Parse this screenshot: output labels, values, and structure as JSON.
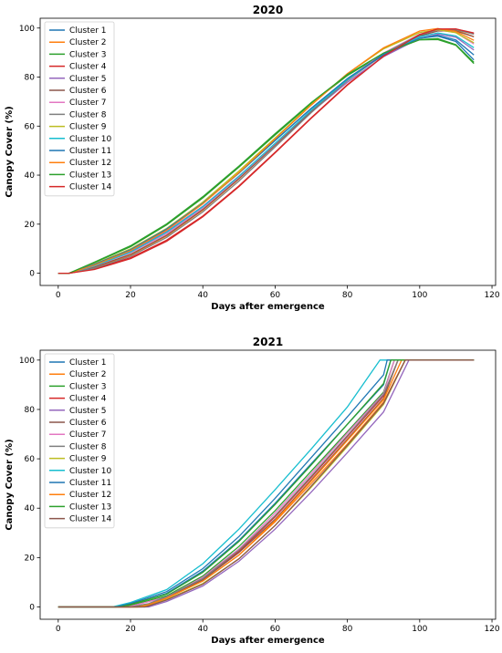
{
  "chart_data": [
    {
      "type": "line",
      "title": "2020",
      "xlabel": "Days after emergence",
      "ylabel": "Canopy Cover (%)",
      "xlim": [
        -5,
        121
      ],
      "ylim": [
        -5,
        104
      ],
      "xticks": [
        0,
        20,
        40,
        60,
        80,
        100,
        120
      ],
      "yticks": [
        0,
        20,
        40,
        60,
        80,
        100
      ],
      "legend_position": "upper-left",
      "series": [
        {
          "name": "Cluster 1",
          "color": "#1f77b4",
          "x": [
            0,
            3,
            10,
            20,
            30,
            40,
            50,
            60,
            70,
            80,
            90,
            100,
            105,
            110,
            115
          ],
          "y": [
            0,
            0,
            3.5,
            9.4,
            17.8,
            28.5,
            40.9,
            54.2,
            67.2,
            79.2,
            89,
            95.8,
            96.7,
            94.5,
            87
          ]
        },
        {
          "name": "Cluster 2",
          "color": "#ff7f0e",
          "x": [
            0,
            3,
            10,
            20,
            30,
            40,
            50,
            60,
            70,
            80,
            90,
            100,
            105,
            110,
            115
          ],
          "y": [
            0,
            0,
            2.3,
            7.4,
            15.2,
            25.7,
            38.4,
            52.2,
            66,
            78.8,
            89.4,
            97,
            99,
            99.1,
            96.5
          ]
        },
        {
          "name": "Cluster 3",
          "color": "#2ca02c",
          "x": [
            0,
            3,
            10,
            20,
            30,
            40,
            50,
            60,
            70,
            80,
            90,
            100,
            105,
            110,
            115
          ],
          "y": [
            0,
            0,
            4.3,
            10.8,
            19.7,
            30.7,
            43.3,
            56.4,
            69.2,
            80.6,
            89.5,
            95.3,
            95.7,
            93.2,
            86
          ]
        },
        {
          "name": "Cluster 4",
          "color": "#d62728",
          "x": [
            0,
            3,
            10,
            20,
            30,
            40,
            50,
            60,
            70,
            80,
            90,
            100,
            105,
            110,
            115
          ],
          "y": [
            0,
            0,
            1.8,
            6.3,
            13.5,
            23.3,
            35.6,
            49.3,
            63.4,
            76.9,
            88.6,
            97.2,
            99.5,
            99.6,
            97.8
          ]
        },
        {
          "name": "Cluster 5",
          "color": "#9467bd",
          "x": [
            0,
            3,
            10,
            20,
            30,
            40,
            50,
            60,
            70,
            80,
            90,
            100,
            105,
            110,
            115
          ],
          "y": [
            0,
            0,
            3.2,
            8.9,
            17,
            27.3,
            39.6,
            52.7,
            65.7,
            77.9,
            88.3,
            95.8,
            97.5,
            96.3,
            91
          ]
        },
        {
          "name": "Cluster 6",
          "color": "#8c564b",
          "x": [
            0,
            3,
            10,
            20,
            30,
            40,
            50,
            60,
            70,
            80,
            90,
            100,
            105,
            110,
            115
          ],
          "y": [
            0,
            0,
            2.5,
            7.7,
            15.5,
            26,
            38.6,
            52.3,
            66,
            78.7,
            89.2,
            96.8,
            98.8,
            98.8,
            96.5
          ]
        },
        {
          "name": "Cluster 7",
          "color": "#e377c2",
          "x": [
            0,
            3,
            10,
            20,
            30,
            40,
            50,
            60,
            70,
            80,
            90,
            100,
            105,
            110,
            115
          ],
          "y": [
            0,
            0,
            2.9,
            8.3,
            16.1,
            26.6,
            39.2,
            52.8,
            66.5,
            79.2,
            89.8,
            97.5,
            99.2,
            98.2,
            93.5
          ]
        },
        {
          "name": "Cluster 8",
          "color": "#7f7f7f",
          "x": [
            0,
            3,
            10,
            20,
            30,
            40,
            50,
            60,
            70,
            80,
            90,
            100,
            105,
            110,
            115
          ],
          "y": [
            0,
            0,
            2,
            6.9,
            14.6,
            25,
            37.6,
            51.5,
            65.5,
            78.6,
            89.6,
            97.3,
            99.3,
            99.3,
            97.5
          ]
        },
        {
          "name": "Cluster 9",
          "color": "#bcbd22",
          "x": [
            0,
            3,
            10,
            20,
            30,
            40,
            50,
            60,
            70,
            80,
            90,
            100,
            105,
            110,
            115
          ],
          "y": [
            0,
            0,
            3.8,
            9.9,
            18.3,
            29,
            41.7,
            55.1,
            68.8,
            81.4,
            91.5,
            98.2,
            99.3,
            98.1,
            94
          ]
        },
        {
          "name": "Cluster 10",
          "color": "#17becf",
          "x": [
            0,
            3,
            10,
            20,
            30,
            40,
            50,
            60,
            70,
            80,
            90,
            100,
            105,
            110,
            115
          ],
          "y": [
            0,
            0,
            3,
            8.6,
            16.7,
            27.1,
            39.5,
            53,
            66.5,
            79,
            89.3,
            96.5,
            98,
            96.8,
            92
          ]
        },
        {
          "name": "Cluster 11",
          "color": "#1f77b4",
          "x": [
            0,
            3,
            10,
            20,
            30,
            40,
            50,
            60,
            70,
            80,
            90,
            100,
            105,
            110,
            115
          ],
          "y": [
            0,
            0,
            3.6,
            9.6,
            18,
            28.5,
            40.8,
            54.1,
            67.3,
            79.4,
            89.2,
            95.9,
            97,
            95.2,
            89
          ]
        },
        {
          "name": "Cluster 12",
          "color": "#ff7f0e",
          "x": [
            0,
            3,
            10,
            20,
            30,
            40,
            50,
            60,
            70,
            80,
            90,
            100,
            105,
            110,
            115
          ],
          "y": [
            0,
            0,
            3.3,
            9.2,
            17.5,
            28.3,
            41,
            54.8,
            68.6,
            81.4,
            91.9,
            98.8,
            99.8,
            98.6,
            95
          ]
        },
        {
          "name": "Cluster 13",
          "color": "#2ca02c",
          "x": [
            0,
            3,
            10,
            20,
            30,
            40,
            50,
            60,
            70,
            80,
            90,
            100,
            105,
            110,
            115
          ],
          "y": [
            0,
            0,
            4.5,
            11.2,
            20.1,
            31.2,
            43.7,
            56.9,
            69.6,
            81,
            89.8,
            95.2,
            95.3,
            93,
            85.5
          ]
        },
        {
          "name": "Cluster 14",
          "color": "#d62728",
          "x": [
            0,
            3,
            10,
            20,
            30,
            40,
            50,
            60,
            70,
            80,
            90,
            100,
            105,
            110,
            115
          ],
          "y": [
            0,
            0,
            1.5,
            5.9,
            13,
            23,
            35.3,
            49.1,
            63.2,
            76.7,
            88.5,
            97.4,
            99.6,
            99.6,
            98
          ]
        }
      ]
    },
    {
      "type": "line",
      "title": "2021",
      "xlabel": "Days after emergence",
      "ylabel": "Canopy Cover (%)",
      "xlim": [
        -5,
        121
      ],
      "ylim": [
        -5,
        104
      ],
      "xticks": [
        0,
        20,
        40,
        60,
        80,
        100,
        120
      ],
      "yticks": [
        0,
        20,
        40,
        60,
        80,
        100
      ],
      "legend_position": "upper-left",
      "series": [
        {
          "name": "Cluster 1",
          "color": "#1f77b4",
          "x": [
            0,
            16,
            20,
            30,
            40,
            50,
            60,
            70,
            80,
            90,
            92,
            115
          ],
          "y": [
            0,
            0,
            1,
            5.5,
            14.5,
            27,
            42,
            58,
            74,
            90,
            100,
            100
          ]
        },
        {
          "name": "Cluster 2",
          "color": "#ff7f0e",
          "x": [
            0,
            22,
            25,
            30,
            40,
            50,
            60,
            70,
            80,
            90,
            96,
            115
          ],
          "y": [
            0,
            0,
            0.8,
            3.5,
            10.5,
            21,
            34.5,
            50,
            66,
            83,
            100,
            100
          ]
        },
        {
          "name": "Cluster 3",
          "color": "#2ca02c",
          "x": [
            0,
            18,
            20,
            30,
            40,
            50,
            60,
            70,
            80,
            90,
            93,
            115
          ],
          "y": [
            0,
            0,
            0.7,
            4.5,
            12.5,
            24.5,
            39,
            55,
            71,
            87,
            100,
            100
          ]
        },
        {
          "name": "Cluster 4",
          "color": "#d62728",
          "x": [
            0,
            20,
            25,
            30,
            40,
            50,
            60,
            70,
            80,
            90,
            94,
            115
          ],
          "y": [
            0,
            0,
            1.2,
            4,
            11,
            22.5,
            36.5,
            52.5,
            69,
            85.5,
            100,
            100
          ]
        },
        {
          "name": "Cluster 5",
          "color": "#9467bd",
          "x": [
            0,
            25,
            30,
            40,
            50,
            60,
            70,
            80,
            90,
            97,
            115
          ],
          "y": [
            0,
            0,
            2.2,
            8.5,
            18.5,
            31.5,
            46.5,
            62.5,
            79,
            100,
            100
          ]
        },
        {
          "name": "Cluster 6",
          "color": "#8c564b",
          "x": [
            0,
            21,
            25,
            30,
            40,
            50,
            60,
            70,
            80,
            90,
            94,
            115
          ],
          "y": [
            0,
            0,
            1,
            3.8,
            11,
            22,
            35.5,
            51.5,
            68,
            84.5,
            100,
            100
          ]
        },
        {
          "name": "Cluster 7",
          "color": "#e377c2",
          "x": [
            0,
            19,
            20,
            30,
            40,
            50,
            60,
            70,
            80,
            90,
            93,
            115
          ],
          "y": [
            0,
            0,
            0.3,
            4,
            12,
            23.5,
            38,
            54,
            70.5,
            86.5,
            100,
            100
          ]
        },
        {
          "name": "Cluster 8",
          "color": "#7f7f7f",
          "x": [
            0,
            20,
            25,
            30,
            40,
            50,
            60,
            70,
            80,
            90,
            94,
            115
          ],
          "y": [
            0,
            0,
            1.3,
            4.2,
            11.5,
            23,
            37,
            53,
            69.5,
            86,
            100,
            100
          ]
        },
        {
          "name": "Cluster 9",
          "color": "#bcbd22",
          "x": [
            0,
            23,
            25,
            30,
            40,
            50,
            60,
            70,
            80,
            90,
            96,
            115
          ],
          "y": [
            0,
            0,
            0.5,
            3,
            9.5,
            19.5,
            33,
            48.5,
            65,
            82,
            100,
            100
          ]
        },
        {
          "name": "Cluster 10",
          "color": "#17becf",
          "x": [
            0,
            15,
            20,
            30,
            40,
            50,
            60,
            70,
            80,
            89,
            115
          ],
          "y": [
            0,
            0,
            1.8,
            7,
            17.5,
            31.5,
            47.5,
            64,
            81,
            100,
            100
          ]
        },
        {
          "name": "Cluster 11",
          "color": "#1f77b4",
          "x": [
            0,
            16,
            20,
            30,
            40,
            50,
            60,
            70,
            80,
            90,
            91,
            115
          ],
          "y": [
            0,
            0,
            1.4,
            6.2,
            15.5,
            28.5,
            44,
            60.5,
            77,
            94,
            100,
            100
          ]
        },
        {
          "name": "Cluster 12",
          "color": "#ff7f0e",
          "x": [
            0,
            22,
            25,
            30,
            40,
            50,
            60,
            70,
            80,
            90,
            95,
            115
          ],
          "y": [
            0,
            0,
            0.9,
            3.6,
            10.5,
            21,
            35,
            51,
            67.5,
            84,
            100,
            100
          ]
        },
        {
          "name": "Cluster 13",
          "color": "#2ca02c",
          "x": [
            0,
            17,
            20,
            30,
            40,
            50,
            60,
            70,
            80,
            90,
            92,
            115
          ],
          "y": [
            0,
            0,
            1,
            5.2,
            14,
            26.5,
            41.5,
            57.5,
            74,
            90.5,
            100,
            100
          ]
        },
        {
          "name": "Cluster 14",
          "color": "#8c564b",
          "x": [
            0,
            24,
            25,
            30,
            40,
            50,
            60,
            70,
            80,
            90,
            96,
            115
          ],
          "y": [
            0,
            0,
            0.4,
            2.8,
            9.2,
            19.5,
            33,
            49,
            65.5,
            82.5,
            100,
            100
          ]
        }
      ]
    }
  ]
}
